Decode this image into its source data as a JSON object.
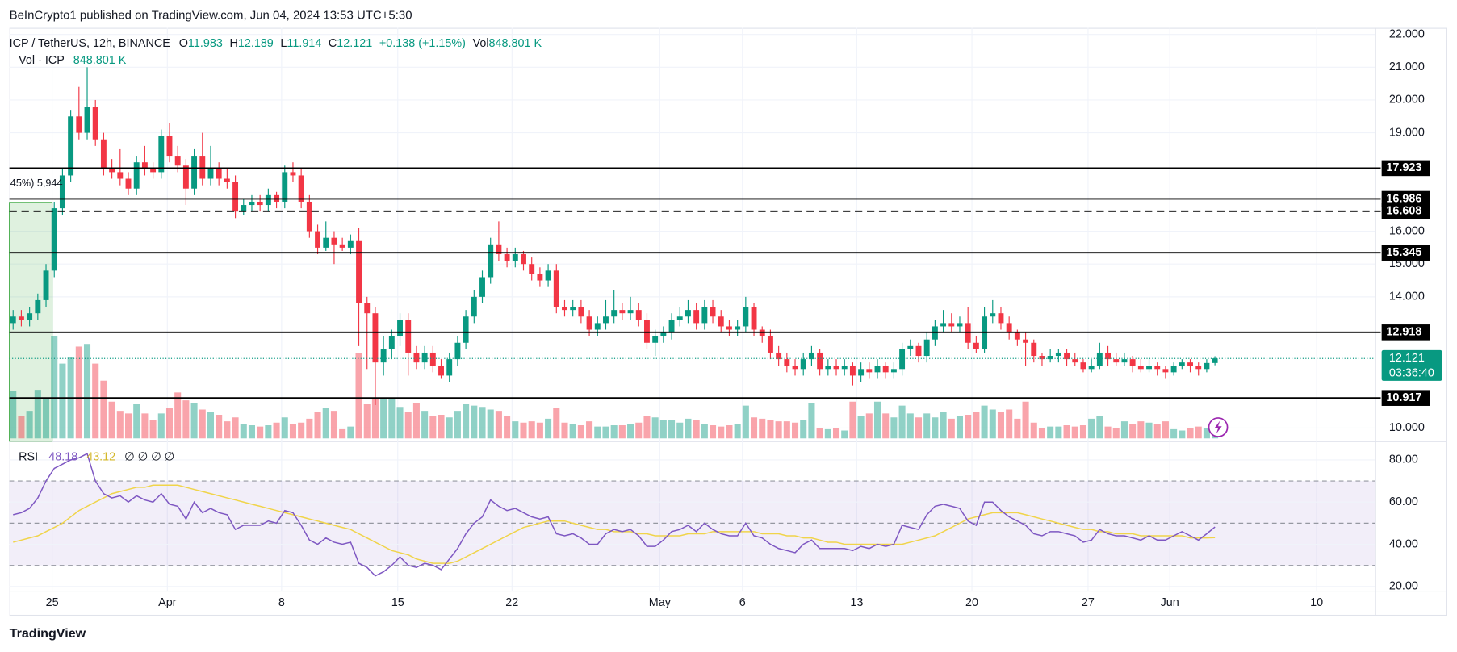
{
  "header": "BeInCrypto1 published on TradingView.com, Jun 04, 2024 13:53 UTC+5:30",
  "footer": "TradingView",
  "chart_data": {
    "type": "candlestick",
    "legend": {
      "symbol": "ICP / TetherUS, 12h, BINANCE",
      "o": "O",
      "h": "H",
      "l": "L",
      "c": "C",
      "change": "+0.138 (+1.15%)",
      "vol": "Vol",
      "vol_title": "Vol · ICP"
    },
    "volume_last_label": "848.801 K",
    "countdown": "03:36:40",
    "range_box": {
      "top": 16.88,
      "label": "45%) 5,944"
    },
    "ylim": [
      9.6,
      22.2
    ],
    "yticks": [
      {
        "value": 22,
        "label": "22.000"
      },
      {
        "value": 21,
        "label": "21.000"
      },
      {
        "value": 20,
        "label": "20.000"
      },
      {
        "value": 19,
        "label": "19.000"
      },
      {
        "value": 16,
        "label": "16.000"
      },
      {
        "value": 15,
        "label": "15.000"
      },
      {
        "value": 14,
        "label": "14.000"
      },
      {
        "value": 10,
        "label": "10.000"
      }
    ],
    "xticks": [
      "25",
      "Apr",
      "8",
      "15",
      "22",
      "May",
      "6",
      "13",
      "20",
      "27",
      "Jun",
      "10"
    ],
    "levels": [
      {
        "value": 17.923,
        "style": "solid"
      },
      {
        "value": 16.986,
        "style": "solid"
      },
      {
        "value": 16.608,
        "style": "dashed"
      },
      {
        "value": 15.345,
        "style": "solid"
      },
      {
        "value": 12.918,
        "style": "solid"
      },
      {
        "value": 10.917,
        "style": "solid"
      }
    ],
    "up_color": "#089981",
    "down_color": "#f23645",
    "candles": [
      [
        13.2,
        13.6,
        13.0,
        13.4
      ],
      [
        13.4,
        13.6,
        13.1,
        13.3
      ],
      [
        13.3,
        13.7,
        13.1,
        13.5
      ],
      [
        13.5,
        14.1,
        13.3,
        13.9
      ],
      [
        13.9,
        15.0,
        13.7,
        14.8
      ],
      [
        14.8,
        16.9,
        14.6,
        16.7
      ],
      [
        16.7,
        17.9,
        16.5,
        17.7
      ],
      [
        17.7,
        19.7,
        17.5,
        19.5
      ],
      [
        19.5,
        20.4,
        18.8,
        19.0
      ],
      [
        19.0,
        21.0,
        18.8,
        19.8
      ],
      [
        19.8,
        20.0,
        18.6,
        18.8
      ],
      [
        18.8,
        19.0,
        17.7,
        17.9
      ],
      [
        17.9,
        18.2,
        17.6,
        17.8
      ],
      [
        17.8,
        18.5,
        17.4,
        17.6
      ],
      [
        17.6,
        17.8,
        17.1,
        17.3
      ],
      [
        17.3,
        18.3,
        17.1,
        18.1
      ],
      [
        18.1,
        18.6,
        17.7,
        17.9
      ],
      [
        17.9,
        18.1,
        17.6,
        17.8
      ],
      [
        17.8,
        19.1,
        17.6,
        18.9
      ],
      [
        18.9,
        19.3,
        18.1,
        18.3
      ],
      [
        18.3,
        18.6,
        17.8,
        18.0
      ],
      [
        18.0,
        18.2,
        16.8,
        17.3
      ],
      [
        17.3,
        18.5,
        17.1,
        18.3
      ],
      [
        18.3,
        19.0,
        17.4,
        17.6
      ],
      [
        17.6,
        18.6,
        17.4,
        17.9
      ],
      [
        17.9,
        18.1,
        17.4,
        17.6
      ],
      [
        17.6,
        17.9,
        17.3,
        17.5
      ],
      [
        17.5,
        17.7,
        16.4,
        16.6
      ],
      [
        16.6,
        17.0,
        16.5,
        16.8
      ],
      [
        16.8,
        17.1,
        16.6,
        16.9
      ],
      [
        16.9,
        17.1,
        16.6,
        16.8
      ],
      [
        16.8,
        17.3,
        16.6,
        17.1
      ],
      [
        17.1,
        17.2,
        16.7,
        16.9
      ],
      [
        16.9,
        18.0,
        16.7,
        17.8
      ],
      [
        17.8,
        18.1,
        17.5,
        17.7
      ],
      [
        17.7,
        17.9,
        16.7,
        16.9
      ],
      [
        16.9,
        17.1,
        15.8,
        16.0
      ],
      [
        16.0,
        16.2,
        15.3,
        15.5
      ],
      [
        15.5,
        16.3,
        15.4,
        15.8
      ],
      [
        15.8,
        16.0,
        15.0,
        15.6
      ],
      [
        15.6,
        15.8,
        15.4,
        15.5
      ],
      [
        15.5,
        15.9,
        15.3,
        15.7
      ],
      [
        15.7,
        16.1,
        12.5,
        13.8
      ],
      [
        13.8,
        14.0,
        11.8,
        13.5
      ],
      [
        13.5,
        13.7,
        10.7,
        12.0
      ],
      [
        12.0,
        12.8,
        11.6,
        12.4
      ],
      [
        12.4,
        13.0,
        12.1,
        12.8
      ],
      [
        12.8,
        13.5,
        12.5,
        13.3
      ],
      [
        13.3,
        13.5,
        11.6,
        12.3
      ],
      [
        12.3,
        12.5,
        11.8,
        12.0
      ],
      [
        12.0,
        12.5,
        11.8,
        12.3
      ],
      [
        12.3,
        12.5,
        11.7,
        11.9
      ],
      [
        11.9,
        12.1,
        11.5,
        11.6
      ],
      [
        11.6,
        12.3,
        11.4,
        12.1
      ],
      [
        12.1,
        12.8,
        11.9,
        12.6
      ],
      [
        12.6,
        13.6,
        12.4,
        13.4
      ],
      [
        13.4,
        14.2,
        13.2,
        14.0
      ],
      [
        14.0,
        14.8,
        13.8,
        14.6
      ],
      [
        14.6,
        15.8,
        14.4,
        15.6
      ],
      [
        15.6,
        16.3,
        15.1,
        15.3
      ],
      [
        15.3,
        15.5,
        14.9,
        15.1
      ],
      [
        15.1,
        15.5,
        14.9,
        15.3
      ],
      [
        15.3,
        15.4,
        14.8,
        15.0
      ],
      [
        15.0,
        15.2,
        14.5,
        14.7
      ],
      [
        14.7,
        14.9,
        14.3,
        14.5
      ],
      [
        14.5,
        15.0,
        14.3,
        14.8
      ],
      [
        14.8,
        15.0,
        13.5,
        13.7
      ],
      [
        13.7,
        13.9,
        13.4,
        13.6
      ],
      [
        13.6,
        13.9,
        13.4,
        13.7
      ],
      [
        13.7,
        13.9,
        13.2,
        13.4
      ],
      [
        13.4,
        13.6,
        12.8,
        13.0
      ],
      [
        13.0,
        13.4,
        12.8,
        13.2
      ],
      [
        13.2,
        13.9,
        13.0,
        13.4
      ],
      [
        13.4,
        14.2,
        13.2,
        13.6
      ],
      [
        13.6,
        13.8,
        13.3,
        13.5
      ],
      [
        13.5,
        14.0,
        13.3,
        13.6
      ],
      [
        13.6,
        13.8,
        13.1,
        13.3
      ],
      [
        13.3,
        13.5,
        12.4,
        12.6
      ],
      [
        12.6,
        13.0,
        12.2,
        12.8
      ],
      [
        12.8,
        13.1,
        12.6,
        12.9
      ],
      [
        12.9,
        13.5,
        12.7,
        13.3
      ],
      [
        13.3,
        13.7,
        13.1,
        13.4
      ],
      [
        13.4,
        13.9,
        13.2,
        13.6
      ],
      [
        13.6,
        13.8,
        13.0,
        13.2
      ],
      [
        13.2,
        13.9,
        13.0,
        13.7
      ],
      [
        13.7,
        13.9,
        13.2,
        13.4
      ],
      [
        13.4,
        13.6,
        12.9,
        13.1
      ],
      [
        13.1,
        13.3,
        12.8,
        13.0
      ],
      [
        13.0,
        13.3,
        12.8,
        13.1
      ],
      [
        13.1,
        14.0,
        12.9,
        13.7
      ],
      [
        13.7,
        13.8,
        12.8,
        13.0
      ],
      [
        13.0,
        13.1,
        12.6,
        12.8
      ],
      [
        12.8,
        13.0,
        12.1,
        12.3
      ],
      [
        12.3,
        12.5,
        11.9,
        12.1
      ],
      [
        12.1,
        12.3,
        11.7,
        11.9
      ],
      [
        11.9,
        12.1,
        11.6,
        11.8
      ],
      [
        11.8,
        12.3,
        11.6,
        12.1
      ],
      [
        12.1,
        12.5,
        11.9,
        12.3
      ],
      [
        12.3,
        12.4,
        11.6,
        11.8
      ],
      [
        11.8,
        12.1,
        11.6,
        11.9
      ],
      [
        11.9,
        12.1,
        11.6,
        11.8
      ],
      [
        11.8,
        12.1,
        11.6,
        11.9
      ],
      [
        11.9,
        12.0,
        11.3,
        11.6
      ],
      [
        11.6,
        12.0,
        11.4,
        11.8
      ],
      [
        11.8,
        12.0,
        11.5,
        11.7
      ],
      [
        11.7,
        12.1,
        11.5,
        11.9
      ],
      [
        11.9,
        12.0,
        11.5,
        11.7
      ],
      [
        11.7,
        12.0,
        11.5,
        11.8
      ],
      [
        11.8,
        12.6,
        11.6,
        12.4
      ],
      [
        12.4,
        12.7,
        12.2,
        12.5
      ],
      [
        12.5,
        12.6,
        12.0,
        12.2
      ],
      [
        12.2,
        12.9,
        12.0,
        12.7
      ],
      [
        12.7,
        13.3,
        12.5,
        13.1
      ],
      [
        13.1,
        13.6,
        12.9,
        13.2
      ],
      [
        13.2,
        13.5,
        12.9,
        13.1
      ],
      [
        13.1,
        13.4,
        12.9,
        13.2
      ],
      [
        13.2,
        13.7,
        12.4,
        12.6
      ],
      [
        12.6,
        12.8,
        12.3,
        12.4
      ],
      [
        12.4,
        13.7,
        12.3,
        13.4
      ],
      [
        13.4,
        13.9,
        13.2,
        13.5
      ],
      [
        13.5,
        13.7,
        13.0,
        13.2
      ],
      [
        13.2,
        13.4,
        12.7,
        12.9
      ],
      [
        12.9,
        13.0,
        12.5,
        12.7
      ],
      [
        12.7,
        12.9,
        11.9,
        12.6
      ],
      [
        12.6,
        12.7,
        12.0,
        12.2
      ],
      [
        12.2,
        12.3,
        11.9,
        12.1
      ],
      [
        12.1,
        12.4,
        12.0,
        12.2
      ],
      [
        12.2,
        12.4,
        12.0,
        12.3
      ],
      [
        12.3,
        12.4,
        11.9,
        12.1
      ],
      [
        12.1,
        12.3,
        11.9,
        12.0
      ],
      [
        12.0,
        12.1,
        11.7,
        11.8
      ],
      [
        11.8,
        12.1,
        11.7,
        11.9
      ],
      [
        11.9,
        12.6,
        11.8,
        12.3
      ],
      [
        12.3,
        12.5,
        11.9,
        12.1
      ],
      [
        12.1,
        12.3,
        11.9,
        12.0
      ],
      [
        12.0,
        12.3,
        11.9,
        12.1
      ],
      [
        12.1,
        12.2,
        11.7,
        11.9
      ],
      [
        11.9,
        12.1,
        11.7,
        11.8
      ],
      [
        11.8,
        12.1,
        11.7,
        11.9
      ],
      [
        11.9,
        12.0,
        11.6,
        11.8
      ],
      [
        11.8,
        11.9,
        11.5,
        11.7
      ],
      [
        11.7,
        12.0,
        11.6,
        11.9
      ],
      [
        11.9,
        12.1,
        11.8,
        12.0
      ],
      [
        12.0,
        12.1,
        11.7,
        11.9
      ],
      [
        11.9,
        12.0,
        11.6,
        11.8
      ],
      [
        11.8,
        12.1,
        11.7,
        11.983
      ],
      [
        11.983,
        12.189,
        11.914,
        12.121
      ]
    ],
    "vol_lim": [
      0,
      8000
    ],
    "volume": [
      3600,
      1700,
      2100,
      3700,
      3000,
      7800,
      5700,
      6200,
      7000,
      7200,
      5700,
      4400,
      2800,
      2100,
      1900,
      2600,
      1900,
      1400,
      1900,
      2300,
      3500,
      2900,
      2700,
      2200,
      2000,
      1800,
      1300,
      1600,
      1100,
      1000,
      900,
      1000,
      1200,
      1600,
      1100,
      1200,
      1500,
      2000,
      2300,
      2100,
      700,
      900,
      6500,
      2600,
      3100,
      3100,
      3100,
      2400,
      2000,
      2700,
      2100,
      1700,
      1800,
      1600,
      2100,
      2600,
      2500,
      2400,
      2200,
      2100,
      1700,
      1300,
      1200,
      1300,
      1200,
      1500,
      2300,
      1200,
      1100,
      1000,
      1300,
      900,
      900,
      1000,
      1000,
      1100,
      1200,
      1700,
      1600,
      1400,
      1400,
      1200,
      1500,
      1400,
      1100,
      1000,
      900,
      1000,
      1100,
      2500,
      1600,
      1500,
      1400,
      1300,
      1300,
      1200,
      1400,
      2700,
      800,
      700,
      800,
      600,
      2800,
      1700,
      1900,
      2800,
      1900,
      1600,
      2500,
      1900,
      1600,
      1900,
      1600,
      2000,
      1500,
      1700,
      1800,
      2000,
      2500,
      2200,
      2000,
      2200,
      1500,
      2800,
      1200,
      800,
      900,
      900,
      1000,
      900,
      1000,
      1500,
      1700,
      900,
      800,
      1300,
      1100,
      1300,
      1200,
      1100,
      1300,
      700,
      600,
      800,
      900,
      800,
      848.801
    ],
    "rsi_title": "RSI",
    "rsi_extra": "∅ ∅ ∅ ∅",
    "rsi_color": "#7e57c2",
    "rsi_ma_color": "#f0d44a",
    "rsi_ylim": [
      18,
      88
    ],
    "rsi_yticks": [
      {
        "value": 80,
        "label": "80.00"
      },
      {
        "value": 60,
        "label": "60.00"
      },
      {
        "value": 40,
        "label": "40.00"
      },
      {
        "value": 20,
        "label": "20.00"
      }
    ],
    "rsi_levels": [
      70,
      50,
      30
    ],
    "rsi": [
      54,
      55,
      57,
      62,
      70,
      76,
      78,
      80,
      81,
      83,
      70,
      64,
      62,
      63,
      60,
      63,
      61,
      60,
      64,
      59,
      58,
      52,
      60,
      55,
      57,
      55,
      54,
      47,
      49,
      49,
      49,
      51,
      50,
      56,
      55,
      49,
      42,
      40,
      43,
      41,
      40,
      41,
      31,
      29,
      25,
      27,
      30,
      34,
      30,
      29,
      31,
      30,
      28,
      33,
      38,
      45,
      50,
      53,
      61,
      58,
      56,
      57,
      55,
      53,
      52,
      53,
      45,
      44,
      45,
      43,
      40,
      40,
      45,
      47,
      46,
      47,
      44,
      39,
      39,
      42,
      46,
      47,
      49,
      46,
      50,
      47,
      45,
      44,
      44,
      50,
      44,
      43,
      40,
      38,
      37,
      36,
      40,
      42,
      38,
      38,
      38,
      38,
      37,
      39,
      38,
      40,
      39,
      40,
      49,
      48,
      47,
      54,
      58,
      59,
      58,
      57,
      51,
      49,
      60,
      60,
      56,
      53,
      51,
      49,
      45,
      44,
      46,
      46,
      45,
      44,
      41,
      42,
      47,
      45,
      44,
      44,
      43,
      42,
      44,
      42,
      42,
      44,
      46,
      44,
      42,
      45,
      48.18
    ],
    "rsi_ma": [
      41,
      42,
      43,
      44,
      46,
      48,
      50,
      53,
      56,
      58,
      60,
      62,
      64,
      65,
      66,
      67,
      67,
      68,
      68,
      68,
      68,
      67,
      66,
      65,
      64,
      63,
      62,
      61,
      60,
      59,
      58,
      57,
      56,
      55,
      54,
      53,
      52,
      51,
      50,
      49,
      48,
      47,
      45,
      43,
      41,
      39,
      37,
      36,
      35,
      33,
      32,
      31,
      31,
      31,
      32,
      34,
      36,
      38,
      40,
      42,
      44,
      46,
      48,
      49,
      50,
      51,
      51,
      51,
      50,
      49,
      48,
      47,
      47,
      46,
      46,
      46,
      45,
      45,
      44,
      44,
      44,
      44,
      45,
      45,
      45,
      46,
      46,
      46,
      46,
      46,
      46,
      45,
      45,
      45,
      44,
      44,
      43,
      43,
      42,
      41,
      41,
      40,
      40,
      40,
      40,
      40,
      40,
      40,
      40,
      41,
      42,
      43,
      44,
      46,
      48,
      50,
      52,
      53,
      54,
      55,
      55,
      55,
      55,
      54,
      53,
      52,
      51,
      50,
      49,
      48,
      47,
      47,
      46,
      46,
      45,
      45,
      45,
      44,
      44,
      44,
      44,
      44,
      44,
      43,
      43,
      43,
      43.12
    ]
  }
}
